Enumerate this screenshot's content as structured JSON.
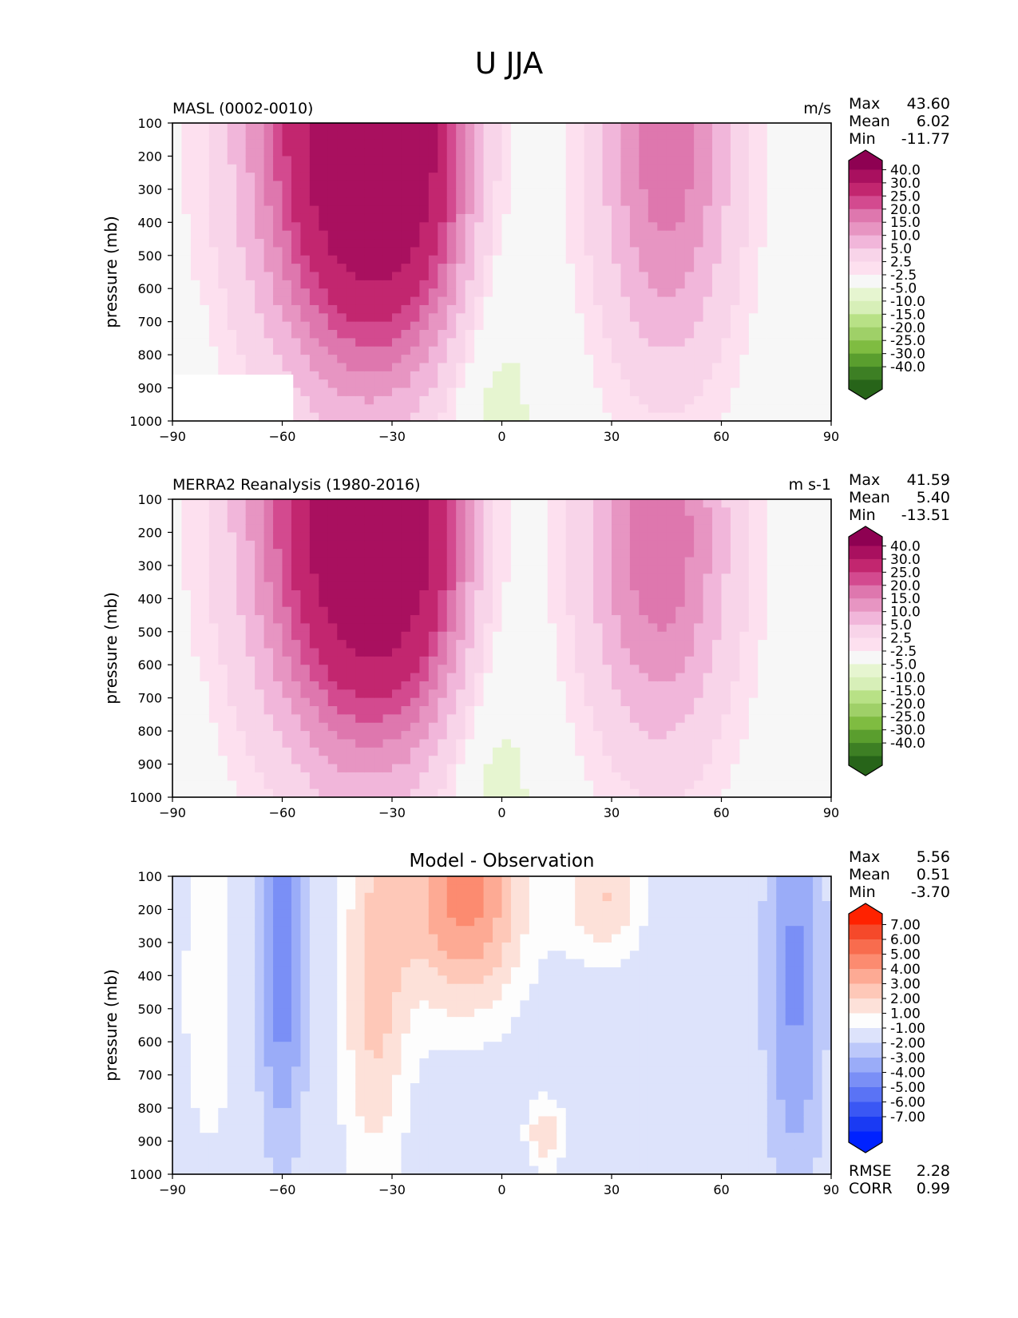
{
  "title": "U JJA",
  "x_ticks": [
    -90,
    -60,
    -30,
    0,
    30,
    60,
    90
  ],
  "y_ticks": [
    100,
    200,
    300,
    400,
    500,
    600,
    700,
    800,
    900,
    1000
  ],
  "ylabel": "pressure (mb)",
  "colorbars": {
    "field": {
      "labels": [
        "40.0",
        "30.0",
        "25.0",
        "20.0",
        "15.0",
        "10.0",
        "5.0",
        "2.5",
        "-2.5",
        "-5.0",
        "-10.0",
        "-15.0",
        "-20.0",
        "-25.0",
        "-30.0",
        "-40.0"
      ],
      "colors": [
        "#8e0152",
        "#a9105f",
        "#c2266f",
        "#d34a8f",
        "#de77ae",
        "#e795c2",
        "#f1b6da",
        "#f8d4e9",
        "#fde0ef",
        "#f7f7f7",
        "#e6f5d0",
        "#d7efb8",
        "#b8e186",
        "#9fd068",
        "#7fbc41",
        "#5a9e2e",
        "#3d7f24",
        "#276419"
      ]
    },
    "diff": {
      "labels": [
        "7.00",
        "6.00",
        "5.00",
        "4.00",
        "3.00",
        "2.00",
        "1.00",
        "-1.00",
        "-2.00",
        "-3.00",
        "-4.00",
        "-5.00",
        "-6.00",
        "-7.00"
      ],
      "colors": [
        "#ff2200",
        "#f5492a",
        "#f86c4e",
        "#fc8b70",
        "#fdaa94",
        "#fec8b8",
        "#fde1d9",
        "#fdfdfd",
        "#dde3fb",
        "#bcc8fa",
        "#9aacf8",
        "#7a8ff6",
        "#5a73f5",
        "#3a57f4",
        "#1a3af3",
        "#0022ff"
      ]
    }
  },
  "chart_data": [
    {
      "type": "heatmap",
      "panel": "top",
      "title_left": "MASL (0002-0010)",
      "title_right": "m/s",
      "title_center": "",
      "colorbar": "field",
      "xlim": [
        -90,
        90
      ],
      "ylim": [
        1000,
        100
      ],
      "stats": [
        {
          "label": "Max",
          "value": "43.60"
        },
        {
          "label": "Mean",
          "value": "6.02"
        },
        {
          "label": "Min",
          "value": "-11.77"
        }
      ],
      "jets": [
        {
          "lat": -30,
          "p": 190,
          "peak": 43.6,
          "width": 17,
          "depth": 420
        },
        {
          "lat": -50,
          "p": 120,
          "peak": 20,
          "width": 18,
          "depth": 500
        },
        {
          "lat": 45,
          "p": 200,
          "peak": 23,
          "width": 13,
          "depth": 450
        }
      ]
    },
    {
      "type": "heatmap",
      "panel": "middle",
      "title_left": "MERRA2 Reanalysis (1980-2016)",
      "title_right": "m s-1",
      "title_center": "",
      "colorbar": "field",
      "xlim": [
        -90,
        90
      ],
      "ylim": [
        1000,
        100
      ],
      "stats": [
        {
          "label": "Max",
          "value": "41.59"
        },
        {
          "label": "Mean",
          "value": "5.40"
        },
        {
          "label": "Min",
          "value": "-13.51"
        }
      ],
      "jets": [
        {
          "lat": -30,
          "p": 200,
          "peak": 41.6,
          "width": 17,
          "depth": 420
        },
        {
          "lat": -50,
          "p": 120,
          "peak": 20,
          "width": 18,
          "depth": 500
        },
        {
          "lat": 43,
          "p": 220,
          "peak": 24,
          "width": 14,
          "depth": 450
        }
      ]
    },
    {
      "type": "heatmap",
      "panel": "bottom",
      "title_left": "",
      "title_right": "",
      "title_center": "Model - Observation",
      "colorbar": "diff",
      "xlim": [
        -90,
        90
      ],
      "ylim": [
        1000,
        100
      ],
      "stats": [
        {
          "label": "Max",
          "value": "5.56"
        },
        {
          "label": "Mean",
          "value": "0.51"
        },
        {
          "label": "Min",
          "value": "-3.70"
        }
      ],
      "footer_stats": [
        {
          "label": "RMSE",
          "value": "2.28"
        },
        {
          "label": "CORR",
          "value": "0.99"
        }
      ],
      "blobs": [
        {
          "lat": -10,
          "p": 150,
          "amp": 5.5,
          "sx": 12,
          "sp": 260
        },
        {
          "lat": -35,
          "p": 450,
          "amp": 3.2,
          "sx": 7,
          "sp": 450
        },
        {
          "lat": 28,
          "p": 160,
          "amp": 3.0,
          "sx": 8,
          "sp": 150
        },
        {
          "lat": -60,
          "p": 350,
          "amp": -3.7,
          "sx": 5,
          "sp": 420
        },
        {
          "lat": 80,
          "p": 400,
          "amp": -3.2,
          "sx": 6,
          "sp": 500
        },
        {
          "lat": -80,
          "p": 450,
          "amp": 1.8,
          "sx": 6,
          "sp": 400
        },
        {
          "lat": 12,
          "p": 880,
          "amp": 2.8,
          "sx": 4,
          "sp": 80
        }
      ]
    }
  ]
}
